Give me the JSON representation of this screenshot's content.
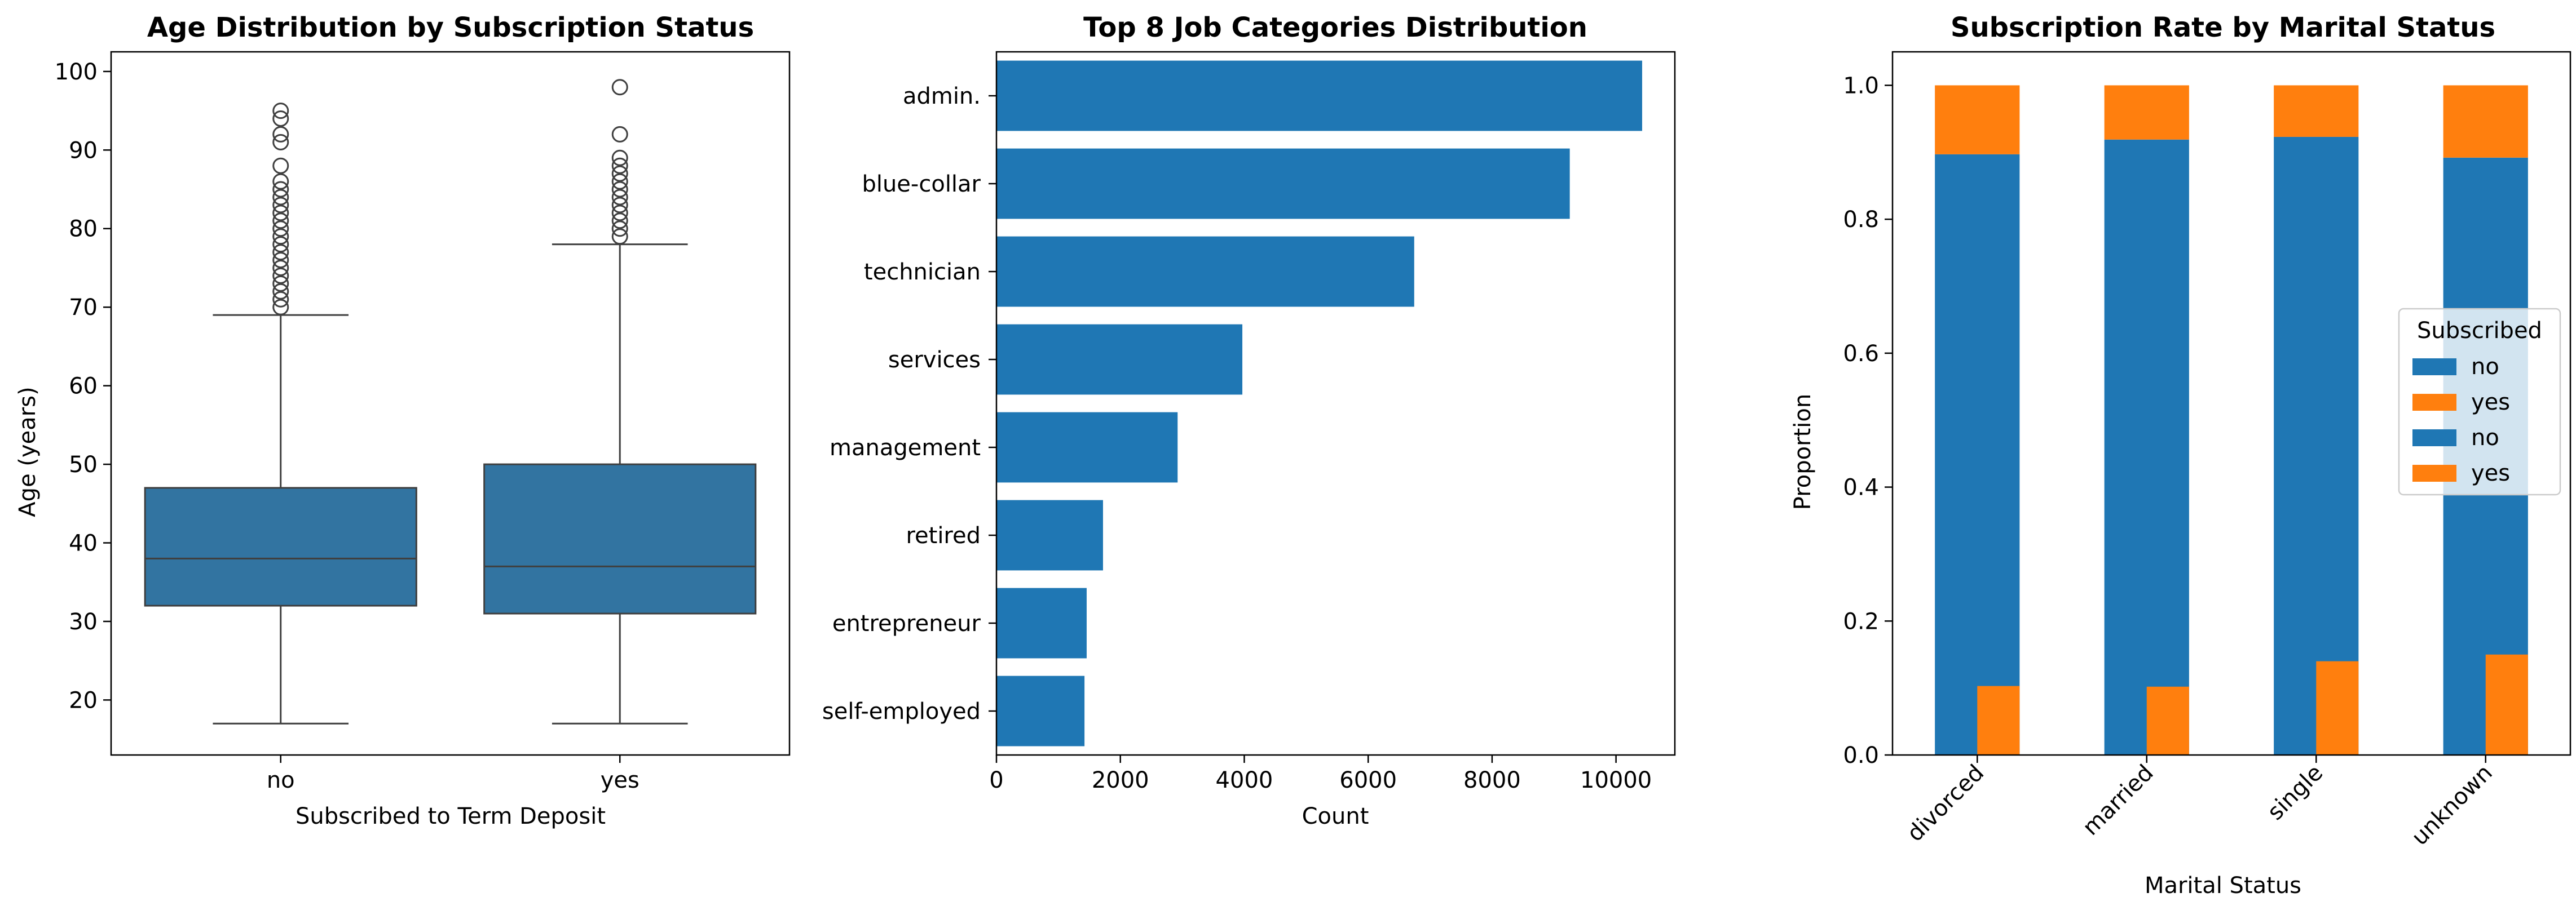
{
  "colors": {
    "blue": "#1f77b4",
    "box_blue": "#3274a1",
    "orange": "#ff7f0e"
  },
  "chart_data": [
    {
      "type": "box",
      "title": "Age Distribution by Subscription Status",
      "xlabel": "Subscribed to Term Deposit",
      "ylabel": "Age (years)",
      "ylim": [
        13,
        102.5
      ],
      "yticks": [
        20,
        30,
        40,
        50,
        60,
        70,
        80,
        90,
        100
      ],
      "categories": [
        "no",
        "yes"
      ],
      "boxes": [
        {
          "category": "no",
          "whisker_low": 17,
          "q1": 32,
          "median": 38,
          "q3": 47,
          "whisker_high": 69,
          "outliers": [
            70,
            71,
            72,
            73,
            74,
            75,
            76,
            77,
            78,
            79,
            80,
            81,
            82,
            83,
            84,
            85,
            86,
            88,
            91,
            92,
            94,
            95
          ]
        },
        {
          "category": "yes",
          "whisker_low": 17,
          "q1": 31,
          "median": 37,
          "q3": 50,
          "whisker_high": 78,
          "outliers": [
            79,
            80,
            81,
            82,
            83,
            84,
            85,
            86,
            87,
            88,
            89,
            92,
            98
          ]
        }
      ]
    },
    {
      "type": "bar",
      "orientation": "horizontal",
      "title": "Top 8 Job Categories Distribution",
      "xlabel": "Count",
      "xlim": [
        0,
        10950
      ],
      "xticks": [
        0,
        2000,
        4000,
        6000,
        8000,
        10000
      ],
      "categories": [
        "admin.",
        "blue-collar",
        "technician",
        "services",
        "management",
        "retired",
        "entrepreneur",
        "self-employed"
      ],
      "values": [
        10422,
        9254,
        6743,
        3969,
        2924,
        1720,
        1456,
        1421
      ]
    },
    {
      "type": "bar",
      "stacked": true,
      "title": "Subscription Rate by Marital Status",
      "xlabel": "Marital Status",
      "ylabel": "Proportion",
      "ylim": [
        0,
        1.05
      ],
      "yticks": [
        0.0,
        0.2,
        0.4,
        0.6,
        0.8,
        1.0
      ],
      "categories": [
        "divorced",
        "married",
        "single",
        "unknown"
      ],
      "legend": {
        "title": "Subscribed",
        "placement": "center-right",
        "entries": [
          "no",
          "yes",
          "no",
          "yes"
        ]
      },
      "series": [
        {
          "name": "no",
          "values": [
            0.897,
            0.898,
            0.86,
            0.85
          ]
        },
        {
          "name": "yes",
          "values": [
            0.103,
            0.102,
            0.14,
            0.15
          ]
        }
      ],
      "overlay_bars": [
        {
          "category": "divorced",
          "no": 0.897,
          "yes": 0.103
        },
        {
          "category": "married",
          "no": 0.919,
          "yes": 0.081
        },
        {
          "category": "single",
          "no": 0.923,
          "yes": 0.077
        },
        {
          "category": "unknown",
          "no": 0.892,
          "yes": 0.108
        }
      ]
    }
  ]
}
